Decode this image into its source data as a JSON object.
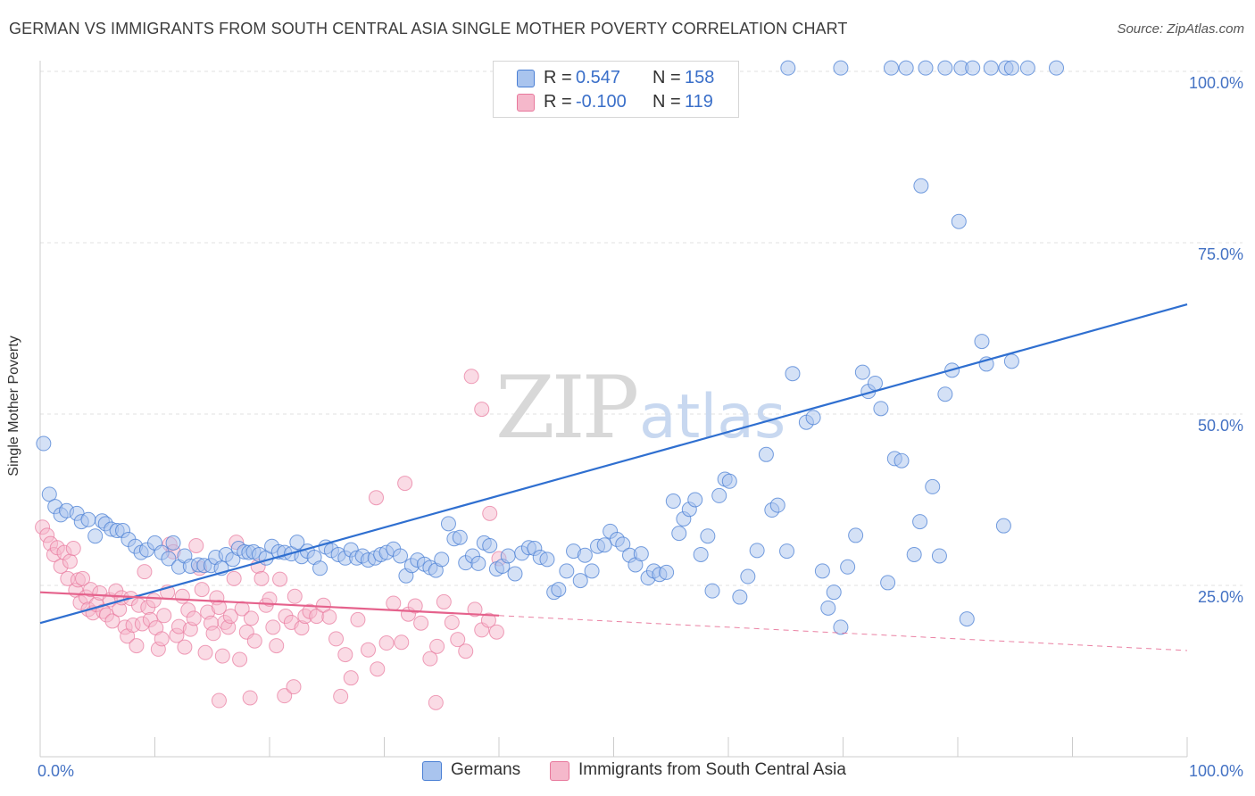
{
  "title": "GERMAN VS IMMIGRANTS FROM SOUTH CENTRAL ASIA SINGLE MOTHER POVERTY CORRELATION CHART",
  "source": "Source: ZipAtlas.com",
  "watermark": {
    "zip": "ZIP",
    "atlas": "atlas"
  },
  "colors": {
    "blue": "#4a7fd4",
    "blue_fill": "#a9c4ee",
    "pink": "#e8789c",
    "pink_fill": "#f5b8cb",
    "axis_text": "#4472c4"
  },
  "stats": {
    "r_label": "R =",
    "n_label": "N =",
    "rows": [
      {
        "series": "Germans",
        "r": "0.547",
        "n": "158"
      },
      {
        "series": "Immigrants from South Central Asia",
        "r": "-0.100",
        "n": "119"
      }
    ]
  },
  "legend": {
    "items": [
      "Germans",
      "Immigrants from South Central Asia"
    ]
  },
  "chart_data": {
    "type": "scatter",
    "title": "GERMAN VS IMMIGRANTS FROM SOUTH CENTRAL ASIA SINGLE MOTHER POVERTY CORRELATION CHART",
    "xlabel": "",
    "ylabel": "Single Mother Poverty",
    "xlim": [
      0,
      100
    ],
    "ylim": [
      0,
      102
    ],
    "x_tick_labels": [
      "0.0%",
      "100.0%"
    ],
    "y_ticks": [
      25,
      50,
      75,
      100
    ],
    "y_tick_labels": [
      "25.0%",
      "50.0%",
      "75.0%",
      "100.0%"
    ],
    "series": [
      {
        "name": "Germans",
        "trend": {
          "x": [
            0,
            100
          ],
          "y": [
            19.5,
            66
          ]
        },
        "points": [
          [
            0.3,
            45.7
          ],
          [
            0.8,
            38.3
          ],
          [
            1.3,
            36.5
          ],
          [
            1.8,
            35.3
          ],
          [
            2.3,
            35.9
          ],
          [
            3.2,
            35.5
          ],
          [
            3.6,
            34.3
          ],
          [
            4.2,
            34.6
          ],
          [
            4.8,
            32.2
          ],
          [
            5.4,
            34.4
          ],
          [
            5.7,
            34.0
          ],
          [
            6.2,
            33.2
          ],
          [
            6.7,
            33.0
          ],
          [
            7.2,
            33.0
          ],
          [
            7.7,
            31.7
          ],
          [
            8.3,
            30.7
          ],
          [
            8.8,
            29.8
          ],
          [
            9.3,
            30.2
          ],
          [
            10.0,
            31.2
          ],
          [
            10.6,
            29.8
          ],
          [
            11.2,
            28.9
          ],
          [
            11.6,
            31.2
          ],
          [
            12.1,
            27.7
          ],
          [
            12.6,
            29.3
          ],
          [
            13.1,
            27.8
          ],
          [
            13.8,
            28.0
          ],
          [
            14.3,
            27.9
          ],
          [
            14.9,
            27.9
          ],
          [
            15.3,
            29.1
          ],
          [
            15.8,
            27.5
          ],
          [
            16.2,
            29.5
          ],
          [
            16.8,
            28.8
          ],
          [
            17.3,
            30.4
          ],
          [
            17.8,
            29.9
          ],
          [
            18.2,
            29.8
          ],
          [
            18.6,
            29.9
          ],
          [
            19.1,
            29.5
          ],
          [
            19.7,
            29.0
          ],
          [
            20.2,
            30.7
          ],
          [
            20.8,
            29.9
          ],
          [
            21.3,
            29.8
          ],
          [
            21.9,
            29.6
          ],
          [
            22.4,
            31.3
          ],
          [
            22.8,
            29.2
          ],
          [
            23.3,
            30.0
          ],
          [
            23.9,
            29.1
          ],
          [
            24.4,
            27.5
          ],
          [
            24.9,
            30.6
          ],
          [
            25.4,
            30.1
          ],
          [
            26.0,
            29.5
          ],
          [
            26.6,
            29.0
          ],
          [
            27.1,
            30.2
          ],
          [
            27.6,
            29.0
          ],
          [
            28.1,
            29.3
          ],
          [
            28.6,
            28.7
          ],
          [
            29.2,
            29.0
          ],
          [
            29.7,
            29.5
          ],
          [
            30.2,
            29.8
          ],
          [
            30.8,
            30.3
          ],
          [
            31.4,
            29.3
          ],
          [
            31.9,
            26.4
          ],
          [
            32.4,
            27.9
          ],
          [
            32.9,
            28.7
          ],
          [
            33.5,
            28.1
          ],
          [
            34.0,
            27.6
          ],
          [
            34.5,
            27.2
          ],
          [
            35.0,
            28.8
          ],
          [
            35.6,
            34.0
          ],
          [
            36.1,
            31.8
          ],
          [
            36.6,
            32.0
          ],
          [
            37.1,
            28.3
          ],
          [
            37.7,
            29.3
          ],
          [
            38.2,
            28.2
          ],
          [
            38.7,
            31.2
          ],
          [
            39.2,
            30.8
          ],
          [
            39.8,
            27.4
          ],
          [
            40.3,
            27.8
          ],
          [
            40.8,
            29.3
          ],
          [
            41.4,
            26.7
          ],
          [
            42.0,
            29.7
          ],
          [
            42.6,
            30.5
          ],
          [
            43.1,
            30.4
          ],
          [
            43.6,
            29.1
          ],
          [
            44.2,
            28.8
          ],
          [
            44.8,
            24.0
          ],
          [
            45.2,
            24.4
          ],
          [
            45.9,
            27.1
          ],
          [
            46.5,
            30.0
          ],
          [
            47.1,
            25.7
          ],
          [
            47.5,
            29.4
          ],
          [
            48.1,
            27.1
          ],
          [
            48.6,
            30.7
          ],
          [
            49.2,
            30.9
          ],
          [
            49.7,
            32.9
          ],
          [
            50.3,
            31.7
          ],
          [
            50.8,
            31.0
          ],
          [
            51.4,
            29.4
          ],
          [
            51.9,
            28.0
          ],
          [
            52.4,
            29.6
          ],
          [
            53.0,
            26.1
          ],
          [
            53.5,
            27.1
          ],
          [
            54.0,
            26.6
          ],
          [
            54.6,
            26.9
          ],
          [
            55.2,
            37.3
          ],
          [
            55.7,
            32.6
          ],
          [
            56.1,
            34.7
          ],
          [
            56.6,
            36.1
          ],
          [
            57.1,
            37.5
          ],
          [
            57.6,
            29.5
          ],
          [
            58.2,
            32.2
          ],
          [
            58.6,
            24.2
          ],
          [
            59.2,
            38.1
          ],
          [
            59.7,
            40.5
          ],
          [
            60.1,
            40.2
          ],
          [
            61.0,
            23.3
          ],
          [
            61.7,
            26.3
          ],
          [
            62.5,
            30.1
          ],
          [
            63.3,
            44.1
          ],
          [
            63.8,
            36.0
          ],
          [
            64.3,
            36.7
          ],
          [
            65.1,
            30.0
          ],
          [
            65.6,
            55.9
          ],
          [
            66.8,
            48.8
          ],
          [
            67.4,
            49.5
          ],
          [
            68.2,
            27.1
          ],
          [
            68.7,
            21.7
          ],
          [
            69.2,
            24.0
          ],
          [
            69.8,
            18.9
          ],
          [
            70.4,
            27.7
          ],
          [
            71.1,
            32.3
          ],
          [
            71.7,
            56.1
          ],
          [
            72.2,
            53.3
          ],
          [
            72.8,
            54.5
          ],
          [
            73.3,
            50.8
          ],
          [
            73.9,
            25.4
          ],
          [
            74.5,
            43.5
          ],
          [
            75.1,
            43.2
          ],
          [
            76.2,
            29.5
          ],
          [
            76.7,
            34.3
          ],
          [
            76.8,
            83.3
          ],
          [
            77.8,
            39.4
          ],
          [
            78.4,
            29.3
          ],
          [
            78.9,
            52.9
          ],
          [
            79.5,
            56.4
          ],
          [
            80.1,
            78.1
          ],
          [
            80.8,
            20.1
          ],
          [
            82.1,
            60.6
          ],
          [
            82.5,
            57.3
          ],
          [
            84.0,
            33.7
          ],
          [
            84.7,
            57.7
          ],
          [
            65.2,
            100.5
          ],
          [
            69.8,
            100.5
          ],
          [
            74.2,
            100.5
          ],
          [
            75.5,
            100.5
          ],
          [
            77.2,
            100.5
          ],
          [
            78.9,
            100.5
          ],
          [
            80.3,
            100.5
          ],
          [
            81.3,
            100.5
          ],
          [
            82.9,
            100.5
          ],
          [
            84.2,
            100.5
          ],
          [
            84.7,
            100.5
          ],
          [
            86.1,
            100.5
          ],
          [
            88.6,
            100.5
          ]
        ]
      },
      {
        "name": "Immigrants from South Central Asia",
        "trend": {
          "x": [
            0,
            40
          ],
          "y": [
            24,
            20.6
          ]
        },
        "trend_dashed": {
          "x": [
            40,
            100
          ],
          "y": [
            20.6,
            15.5
          ]
        },
        "points": [
          [
            0.2,
            33.5
          ],
          [
            0.6,
            32.3
          ],
          [
            0.9,
            31.1
          ],
          [
            1.2,
            29.5
          ],
          [
            1.5,
            30.5
          ],
          [
            1.8,
            27.8
          ],
          [
            2.1,
            29.8
          ],
          [
            2.4,
            26.0
          ],
          [
            2.6,
            28.5
          ],
          [
            2.9,
            30.4
          ],
          [
            3.1,
            24.3
          ],
          [
            3.3,
            25.8
          ],
          [
            3.5,
            22.5
          ],
          [
            3.7,
            26.0
          ],
          [
            4.0,
            23.3
          ],
          [
            4.2,
            21.5
          ],
          [
            4.4,
            24.4
          ],
          [
            4.6,
            21.0
          ],
          [
            4.9,
            22.2
          ],
          [
            5.2,
            23.9
          ],
          [
            5.5,
            21.2
          ],
          [
            5.8,
            20.7
          ],
          [
            6.1,
            22.9
          ],
          [
            6.3,
            19.8
          ],
          [
            6.6,
            24.2
          ],
          [
            6.9,
            21.5
          ],
          [
            7.1,
            23.2
          ],
          [
            7.4,
            18.9
          ],
          [
            7.6,
            17.6
          ],
          [
            7.9,
            23.1
          ],
          [
            8.1,
            19.2
          ],
          [
            8.4,
            16.2
          ],
          [
            8.6,
            22.1
          ],
          [
            8.9,
            19.4
          ],
          [
            9.1,
            27.0
          ],
          [
            9.4,
            21.8
          ],
          [
            9.6,
            20.0
          ],
          [
            9.9,
            22.8
          ],
          [
            10.1,
            18.8
          ],
          [
            10.3,
            15.7
          ],
          [
            10.6,
            17.2
          ],
          [
            10.8,
            20.6
          ],
          [
            11.1,
            24.0
          ],
          [
            11.3,
            31.0
          ],
          [
            11.6,
            29.9
          ],
          [
            11.9,
            17.7
          ],
          [
            12.1,
            19.0
          ],
          [
            12.4,
            23.4
          ],
          [
            12.6,
            16.0
          ],
          [
            12.9,
            21.4
          ],
          [
            13.1,
            18.6
          ],
          [
            13.4,
            20.2
          ],
          [
            13.6,
            30.8
          ],
          [
            13.9,
            27.5
          ],
          [
            14.1,
            24.4
          ],
          [
            14.4,
            15.2
          ],
          [
            14.6,
            21.1
          ],
          [
            14.9,
            19.5
          ],
          [
            15.1,
            18.0
          ],
          [
            15.4,
            23.2
          ],
          [
            15.6,
            21.8
          ],
          [
            15.9,
            14.7
          ],
          [
            16.1,
            19.6
          ],
          [
            16.4,
            18.9
          ],
          [
            16.6,
            20.5
          ],
          [
            16.9,
            26.0
          ],
          [
            17.1,
            31.3
          ],
          [
            17.4,
            14.2
          ],
          [
            17.6,
            21.6
          ],
          [
            18.0,
            18.2
          ],
          [
            18.4,
            20.2
          ],
          [
            18.7,
            16.9
          ],
          [
            19.0,
            27.8
          ],
          [
            19.3,
            26.0
          ],
          [
            19.7,
            22.1
          ],
          [
            20.0,
            23.0
          ],
          [
            20.3,
            18.9
          ],
          [
            20.6,
            16.2
          ],
          [
            20.9,
            25.9
          ],
          [
            21.4,
            20.5
          ],
          [
            21.9,
            19.6
          ],
          [
            22.2,
            23.4
          ],
          [
            22.8,
            18.8
          ],
          [
            23.1,
            20.5
          ],
          [
            23.5,
            21.2
          ],
          [
            24.1,
            20.5
          ],
          [
            24.7,
            22.1
          ],
          [
            25.2,
            20.4
          ],
          [
            25.8,
            17.2
          ],
          [
            26.6,
            14.9
          ],
          [
            27.1,
            11.5
          ],
          [
            27.7,
            20.0
          ],
          [
            28.6,
            15.6
          ],
          [
            29.4,
            12.8
          ],
          [
            30.2,
            16.6
          ],
          [
            30.8,
            22.4
          ],
          [
            31.5,
            16.7
          ],
          [
            32.1,
            20.8
          ],
          [
            32.7,
            22.0
          ],
          [
            33.2,
            19.5
          ],
          [
            34.0,
            14.3
          ],
          [
            34.6,
            16.1
          ],
          [
            35.2,
            22.6
          ],
          [
            35.9,
            19.6
          ],
          [
            36.4,
            17.1
          ],
          [
            37.1,
            15.4
          ],
          [
            37.9,
            21.5
          ],
          [
            38.5,
            18.5
          ],
          [
            39.1,
            19.9
          ],
          [
            39.8,
            18.2
          ],
          [
            15.6,
            8.2
          ],
          [
            18.3,
            8.6
          ],
          [
            21.3,
            8.9
          ],
          [
            22.1,
            10.2
          ],
          [
            26.2,
            8.8
          ],
          [
            34.5,
            7.9
          ],
          [
            29.3,
            37.8
          ],
          [
            31.8,
            39.9
          ],
          [
            38.5,
            50.7
          ],
          [
            37.6,
            55.5
          ],
          [
            39.2,
            35.5
          ],
          [
            40.0,
            28.9
          ]
        ]
      }
    ]
  }
}
